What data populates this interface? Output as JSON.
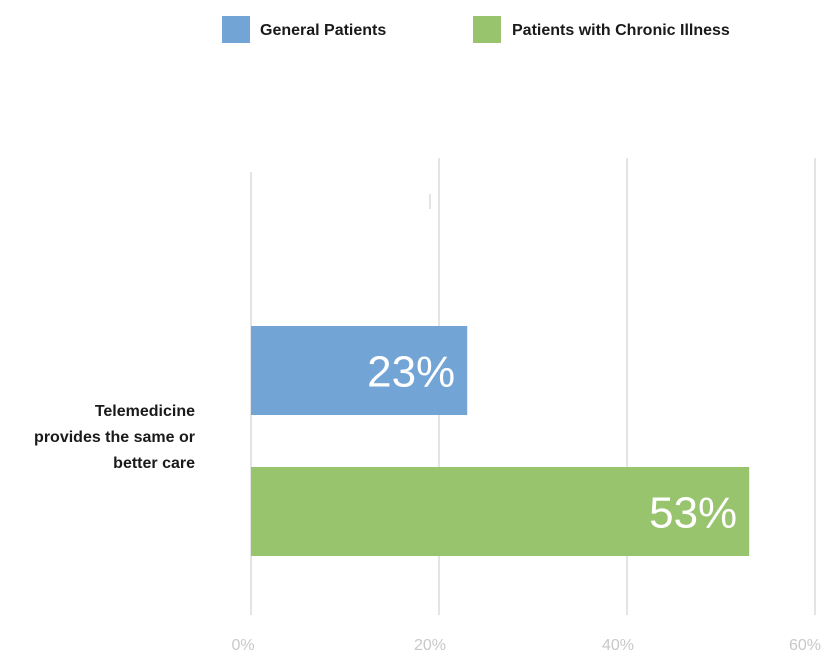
{
  "chart_data": {
    "type": "bar",
    "orientation": "horizontal",
    "categories": [
      "Telemedicine provides the same or better care"
    ],
    "category_label_lines": [
      "Telemedicine",
      "provides the same or",
      "better care"
    ],
    "series": [
      {
        "name": "General Patients",
        "values": [
          23
        ],
        "color": "#72a4d6"
      },
      {
        "name": "Patients with Chronic Illness",
        "values": [
          53
        ],
        "color": "#98c46e"
      }
    ],
    "data_labels": [
      "23%",
      "53%"
    ],
    "xlim": [
      0,
      60
    ],
    "xticks": [
      0,
      20,
      40,
      60
    ],
    "xtick_labels": [
      "0%",
      "20%",
      "40%",
      "60%"
    ],
    "grid": true,
    "legend_position": "top"
  }
}
